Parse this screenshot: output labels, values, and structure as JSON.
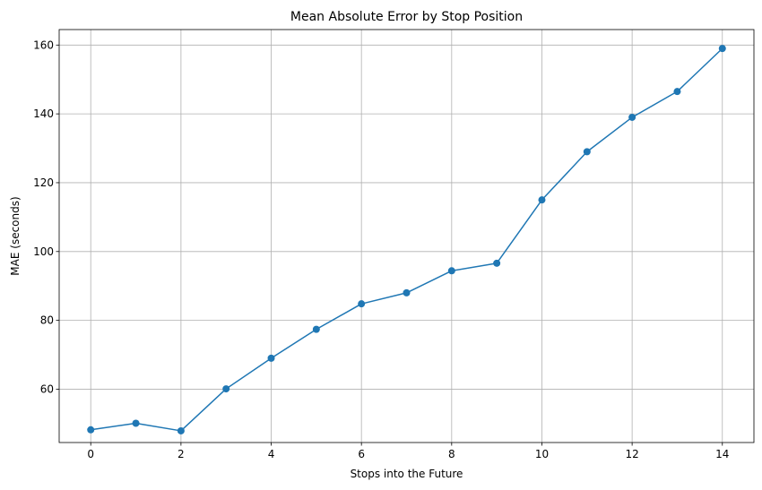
{
  "chart_data": {
    "type": "line",
    "title": "Mean Absolute Error by Stop Position",
    "xlabel": "Stops into the Future",
    "ylabel": "MAE (seconds)",
    "x": [
      0,
      1,
      2,
      3,
      4,
      5,
      6,
      7,
      8,
      9,
      10,
      11,
      12,
      13,
      14
    ],
    "series": [
      {
        "values": [
          48.2,
          50.1,
          47.9,
          60.1,
          69.0,
          77.4,
          84.8,
          88.0,
          94.4,
          96.6,
          115.0,
          129.0,
          139.0,
          146.5,
          159.0
        ],
        "color": "#1f77b4",
        "marker": "circle"
      }
    ],
    "xlim": [
      -0.7,
      14.7
    ],
    "ylim": [
      44.5,
      164.5
    ],
    "xticks": [
      0,
      2,
      4,
      6,
      8,
      10,
      12,
      14
    ],
    "yticks": [
      60,
      80,
      100,
      120,
      140,
      160
    ],
    "grid": true,
    "legend": null
  }
}
